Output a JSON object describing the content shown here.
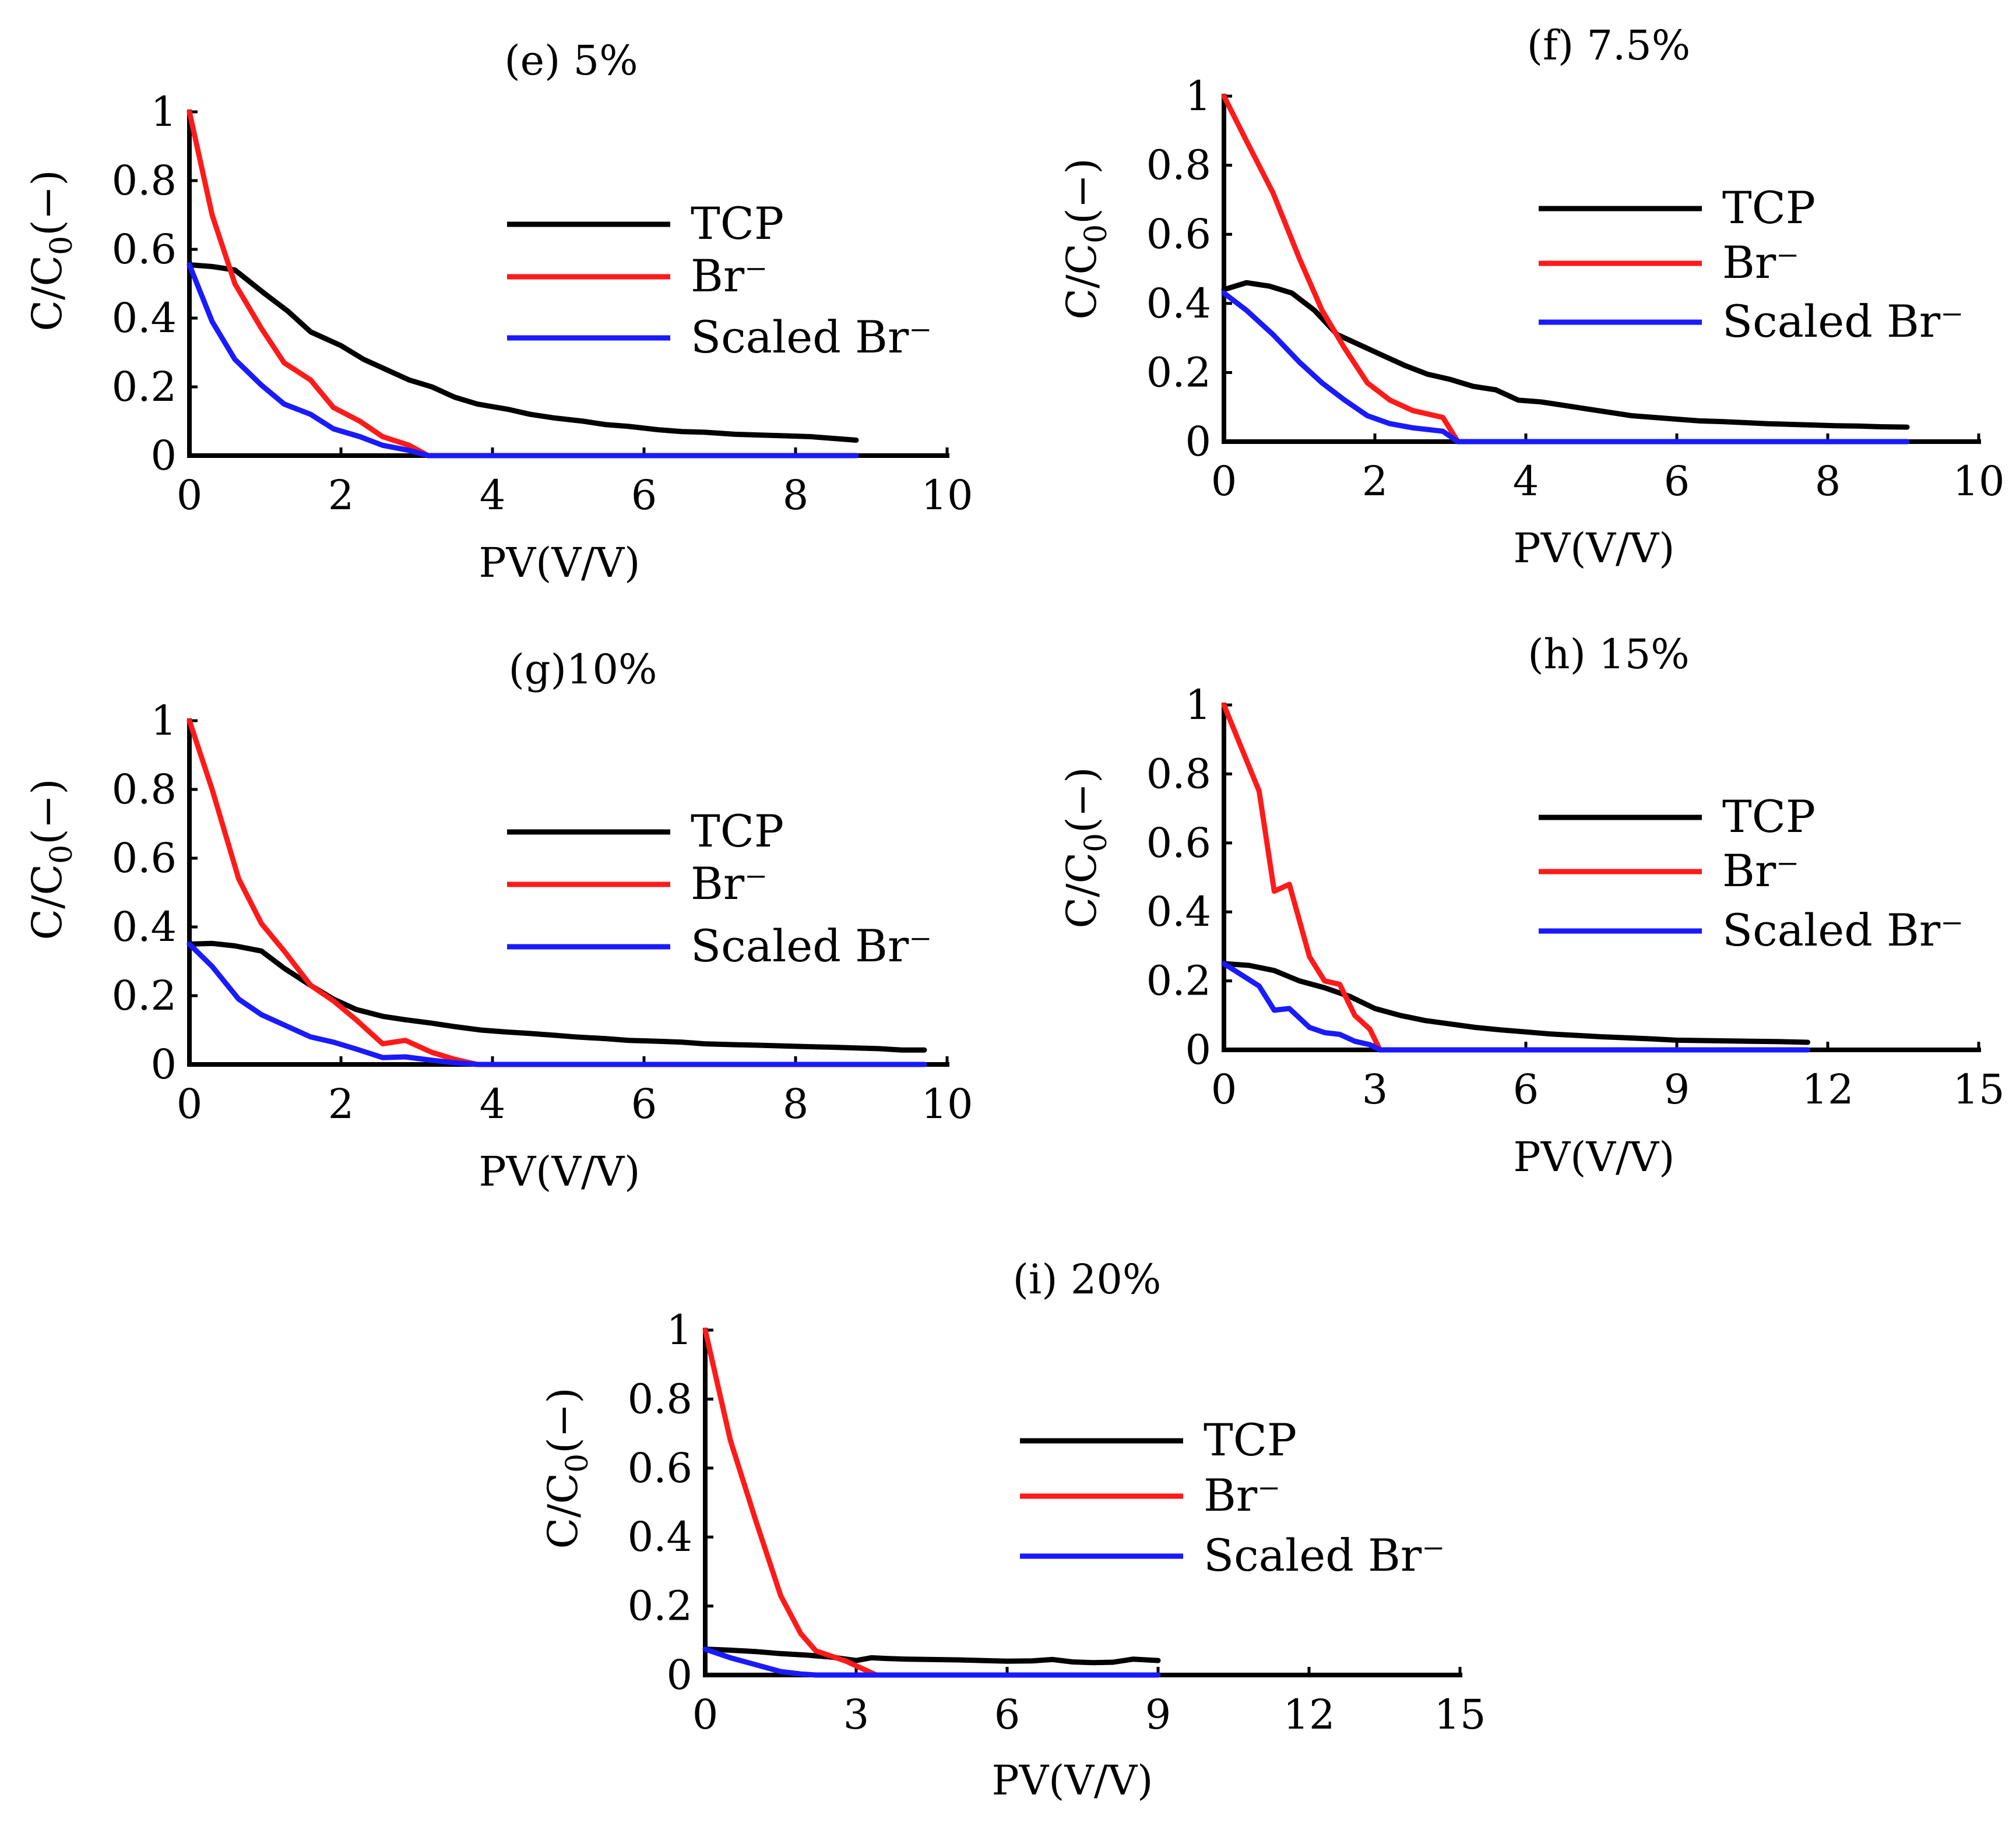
{
  "colors": {
    "TCP": "#000000",
    "Br": "#ff1a1a",
    "Scaled Br": "#1a1aff",
    "axis": "#000000"
  },
  "legend_position": "upper-right",
  "chart_data": [
    {
      "type": "line",
      "title": "(e)  5%",
      "xlabel": "PV(V/V)",
      "ylabel": "C/C0(−)",
      "ylabel_main": "C/C",
      "ylabel_sub": "0",
      "ylabel_tail": "(−)",
      "xlim": [
        0,
        10
      ],
      "ylim": [
        0,
        1
      ],
      "xticks": [
        "0",
        "2",
        "4",
        "6",
        "8",
        "10"
      ],
      "yticks": [
        "0",
        "0.2",
        "0.4",
        "0.6",
        "0.8",
        "1"
      ],
      "grid": false,
      "series": [
        {
          "name": "TCP",
          "x": [
            0,
            0.3,
            0.6,
            1.0,
            1.3,
            1.6,
            2.0,
            2.3,
            2.6,
            2.9,
            3.2,
            3.5,
            3.8,
            4.2,
            4.5,
            4.8,
            5.2,
            5.5,
            5.8,
            6.2,
            6.5,
            6.8,
            7.2,
            7.5,
            7.8,
            8.2,
            8.5,
            8.8
          ],
          "y": [
            0.555,
            0.55,
            0.54,
            0.47,
            0.42,
            0.36,
            0.32,
            0.28,
            0.25,
            0.22,
            0.2,
            0.17,
            0.15,
            0.135,
            0.12,
            0.11,
            0.1,
            0.09,
            0.085,
            0.075,
            0.07,
            0.068,
            0.062,
            0.06,
            0.058,
            0.055,
            0.05,
            0.045
          ]
        },
        {
          "name": "Br⁻",
          "x": [
            0,
            0.3,
            0.6,
            0.95,
            1.25,
            1.6,
            1.9,
            2.25,
            2.55,
            2.9,
            3.15,
            4,
            6,
            8,
            8.8
          ],
          "y": [
            1.0,
            0.7,
            0.5,
            0.37,
            0.27,
            0.22,
            0.14,
            0.1,
            0.055,
            0.03,
            0.0,
            0.0,
            0.0,
            0.0,
            0.0
          ]
        },
        {
          "name": "Scaled Br⁻",
          "x": [
            0,
            0.3,
            0.6,
            0.95,
            1.25,
            1.6,
            1.9,
            2.25,
            2.55,
            2.9,
            3.15,
            4,
            6,
            8,
            8.8
          ],
          "y": [
            0.555,
            0.39,
            0.28,
            0.205,
            0.15,
            0.12,
            0.078,
            0.055,
            0.03,
            0.015,
            0.0,
            0.0,
            0.0,
            0.0,
            0.0
          ]
        }
      ]
    },
    {
      "type": "line",
      "title": "(f)  7.5%",
      "xlabel": "PV(V/V)",
      "ylabel": "C/C0(−)",
      "ylabel_main": "C/C",
      "ylabel_sub": "0",
      "ylabel_tail": "(−)",
      "xlim": [
        0,
        10
      ],
      "ylim": [
        0,
        1
      ],
      "xticks": [
        "0",
        "2",
        "4",
        "6",
        "8",
        "10"
      ],
      "yticks": [
        "0",
        "0.2",
        "0.4",
        "0.6",
        "0.8",
        "1"
      ],
      "grid": false,
      "series": [
        {
          "name": "TCP",
          "x": [
            0,
            0.3,
            0.6,
            0.9,
            1.2,
            1.5,
            1.8,
            2.1,
            2.4,
            2.7,
            3.0,
            3.3,
            3.6,
            3.9,
            4.2,
            4.5,
            4.8,
            5.1,
            5.4,
            5.7,
            6.0,
            6.3,
            6.6,
            6.9,
            7.2,
            7.5,
            7.8,
            8.1,
            8.4,
            8.7,
            9.05
          ],
          "y": [
            0.44,
            0.46,
            0.45,
            0.43,
            0.38,
            0.31,
            0.28,
            0.25,
            0.22,
            0.195,
            0.18,
            0.16,
            0.15,
            0.12,
            0.115,
            0.105,
            0.095,
            0.085,
            0.075,
            0.07,
            0.065,
            0.06,
            0.058,
            0.055,
            0.052,
            0.05,
            0.048,
            0.046,
            0.045,
            0.043,
            0.042
          ]
        },
        {
          "name": "Br⁻",
          "x": [
            0,
            0.3,
            0.65,
            1.0,
            1.3,
            1.6,
            1.9,
            2.2,
            2.5,
            2.9,
            3.1,
            4,
            6,
            8,
            9.05
          ],
          "y": [
            1.0,
            0.87,
            0.72,
            0.53,
            0.38,
            0.27,
            0.17,
            0.12,
            0.09,
            0.07,
            0.0,
            0.0,
            0.0,
            0.0,
            0.0
          ]
        },
        {
          "name": "Scaled Br⁻",
          "x": [
            0,
            0.3,
            0.65,
            1.0,
            1.3,
            1.6,
            1.9,
            2.2,
            2.5,
            2.9,
            3.1,
            4,
            6,
            8,
            9.05
          ],
          "y": [
            0.43,
            0.38,
            0.31,
            0.23,
            0.17,
            0.12,
            0.075,
            0.052,
            0.04,
            0.03,
            0.0,
            0.0,
            0.0,
            0.0,
            0.0
          ]
        }
      ]
    },
    {
      "type": "line",
      "title": "(g)10%",
      "xlabel": "PV(V/V)",
      "ylabel": "C/C0(−)",
      "ylabel_main": "C/C",
      "ylabel_sub": "0",
      "ylabel_tail": "(−)",
      "xlim": [
        0,
        10
      ],
      "ylim": [
        0,
        1
      ],
      "xticks": [
        "0",
        "2",
        "4",
        "6",
        "8",
        "10"
      ],
      "yticks": [
        "0",
        "0.2",
        "0.4",
        "0.6",
        "0.8",
        "1"
      ],
      "grid": false,
      "series": [
        {
          "name": "TCP",
          "x": [
            0,
            0.3,
            0.6,
            0.95,
            1.25,
            1.6,
            1.9,
            2.2,
            2.55,
            2.85,
            3.2,
            3.5,
            3.85,
            4.15,
            4.5,
            4.8,
            5.1,
            5.5,
            5.8,
            6.1,
            6.5,
            6.8,
            7.1,
            7.5,
            7.8,
            8.1,
            8.5,
            8.8,
            9.1,
            9.4,
            9.7
          ],
          "y": [
            0.35,
            0.352,
            0.345,
            0.33,
            0.28,
            0.23,
            0.19,
            0.16,
            0.14,
            0.13,
            0.12,
            0.11,
            0.1,
            0.095,
            0.09,
            0.085,
            0.08,
            0.075,
            0.07,
            0.068,
            0.065,
            0.06,
            0.058,
            0.056,
            0.054,
            0.052,
            0.05,
            0.048,
            0.046,
            0.042,
            0.042
          ]
        },
        {
          "name": "Br⁻",
          "x": [
            0,
            0.3,
            0.65,
            0.95,
            1.25,
            1.6,
            1.9,
            2.2,
            2.55,
            2.85,
            3.2,
            3.5,
            3.8,
            4.5,
            6,
            8,
            9.7
          ],
          "y": [
            1.0,
            0.8,
            0.54,
            0.41,
            0.33,
            0.23,
            0.185,
            0.13,
            0.06,
            0.07,
            0.035,
            0.015,
            0.0,
            0.0,
            0.0,
            0.0,
            0.0
          ]
        },
        {
          "name": "Scaled Br⁻",
          "x": [
            0,
            0.3,
            0.65,
            0.95,
            1.25,
            1.6,
            1.9,
            2.2,
            2.55,
            2.85,
            3.2,
            3.5,
            3.8,
            4.5,
            6,
            8,
            9.7
          ],
          "y": [
            0.35,
            0.285,
            0.19,
            0.145,
            0.115,
            0.08,
            0.065,
            0.045,
            0.02,
            0.022,
            0.012,
            0.005,
            0.0,
            0.0,
            0.0,
            0.0,
            0.0
          ]
        }
      ]
    },
    {
      "type": "line",
      "title": "(h)  15%",
      "xlabel": "PV(V/V)",
      "ylabel": "C/C0(−)",
      "ylabel_main": "C/C",
      "ylabel_sub": "0",
      "ylabel_tail": "(−)",
      "xlim": [
        0,
        15
      ],
      "ylim": [
        0,
        1
      ],
      "xticks": [
        "0",
        "3",
        "6",
        "9",
        "12",
        "15"
      ],
      "yticks": [
        "0",
        "0.2",
        "0.4",
        "0.6",
        "0.8",
        "1"
      ],
      "grid": false,
      "series": [
        {
          "name": "TCP",
          "x": [
            0,
            0.5,
            1.0,
            1.5,
            2.0,
            2.5,
            3.0,
            3.5,
            4.0,
            4.5,
            5.0,
            5.5,
            6.0,
            6.5,
            7.0,
            7.5,
            8.0,
            8.5,
            9.0,
            9.5,
            10.0,
            10.5,
            11.0,
            11.6
          ],
          "y": [
            0.25,
            0.245,
            0.23,
            0.2,
            0.18,
            0.155,
            0.12,
            0.1,
            0.085,
            0.075,
            0.065,
            0.058,
            0.052,
            0.046,
            0.042,
            0.038,
            0.035,
            0.032,
            0.028,
            0.027,
            0.026,
            0.025,
            0.024,
            0.022
          ]
        },
        {
          "name": "Br⁻",
          "x": [
            0,
            0.7,
            1.0,
            1.3,
            1.7,
            2.0,
            2.3,
            2.6,
            2.9,
            3.1,
            4.5,
            7,
            9,
            11.6
          ],
          "y": [
            1.0,
            0.75,
            0.46,
            0.48,
            0.27,
            0.2,
            0.19,
            0.1,
            0.06,
            0.0,
            0.0,
            0.0,
            0.0,
            0.0
          ]
        },
        {
          "name": "Scaled Br⁻",
          "x": [
            0,
            0.7,
            1.0,
            1.3,
            1.7,
            2.0,
            2.3,
            2.6,
            2.9,
            3.1,
            4.5,
            7,
            9,
            11.6
          ],
          "y": [
            0.25,
            0.185,
            0.115,
            0.12,
            0.065,
            0.05,
            0.045,
            0.025,
            0.015,
            0.0,
            0.0,
            0.0,
            0.0,
            0.0
          ]
        }
      ]
    },
    {
      "type": "line",
      "title": "(i)  20%",
      "xlabel": "PV(V/V)",
      "ylabel": "C/C0(−)",
      "ylabel_main": "C/C",
      "ylabel_sub": "0",
      "ylabel_tail": "(−)",
      "xlim": [
        0,
        15
      ],
      "ylim": [
        0,
        1
      ],
      "xticks": [
        "0",
        "3",
        "6",
        "9",
        "12",
        "15"
      ],
      "yticks": [
        "0",
        "0.2",
        "0.4",
        "0.6",
        "0.8",
        "1"
      ],
      "grid": false,
      "series": [
        {
          "name": "TCP",
          "x": [
            0,
            0.5,
            1.0,
            1.5,
            2.0,
            2.5,
            3.0,
            3.3,
            3.6,
            4.0,
            4.5,
            5.0,
            5.5,
            6.0,
            6.5,
            6.9,
            7.3,
            7.7,
            8.1,
            8.5,
            9.0
          ],
          "y": [
            0.075,
            0.072,
            0.068,
            0.062,
            0.058,
            0.052,
            0.042,
            0.05,
            0.048,
            0.046,
            0.045,
            0.044,
            0.042,
            0.04,
            0.041,
            0.045,
            0.038,
            0.036,
            0.037,
            0.046,
            0.042
          ]
        },
        {
          "name": "Br⁻",
          "x": [
            0,
            0.5,
            1.0,
            1.5,
            1.9,
            2.2,
            2.5,
            2.8,
            3.1,
            3.4,
            4.5,
            6,
            9
          ],
          "y": [
            1.0,
            0.68,
            0.45,
            0.23,
            0.12,
            0.07,
            0.055,
            0.04,
            0.02,
            0.0,
            0.0,
            0.0,
            0.0
          ]
        },
        {
          "name": "Scaled Br⁻",
          "x": [
            0,
            0.5,
            1.0,
            1.5,
            1.9,
            2.2,
            2.5,
            3.0,
            4.5,
            6,
            9
          ],
          "y": [
            0.075,
            0.05,
            0.03,
            0.01,
            0.003,
            0.0,
            0.0,
            0.0,
            0.0,
            0.0,
            0.0
          ]
        }
      ]
    }
  ]
}
